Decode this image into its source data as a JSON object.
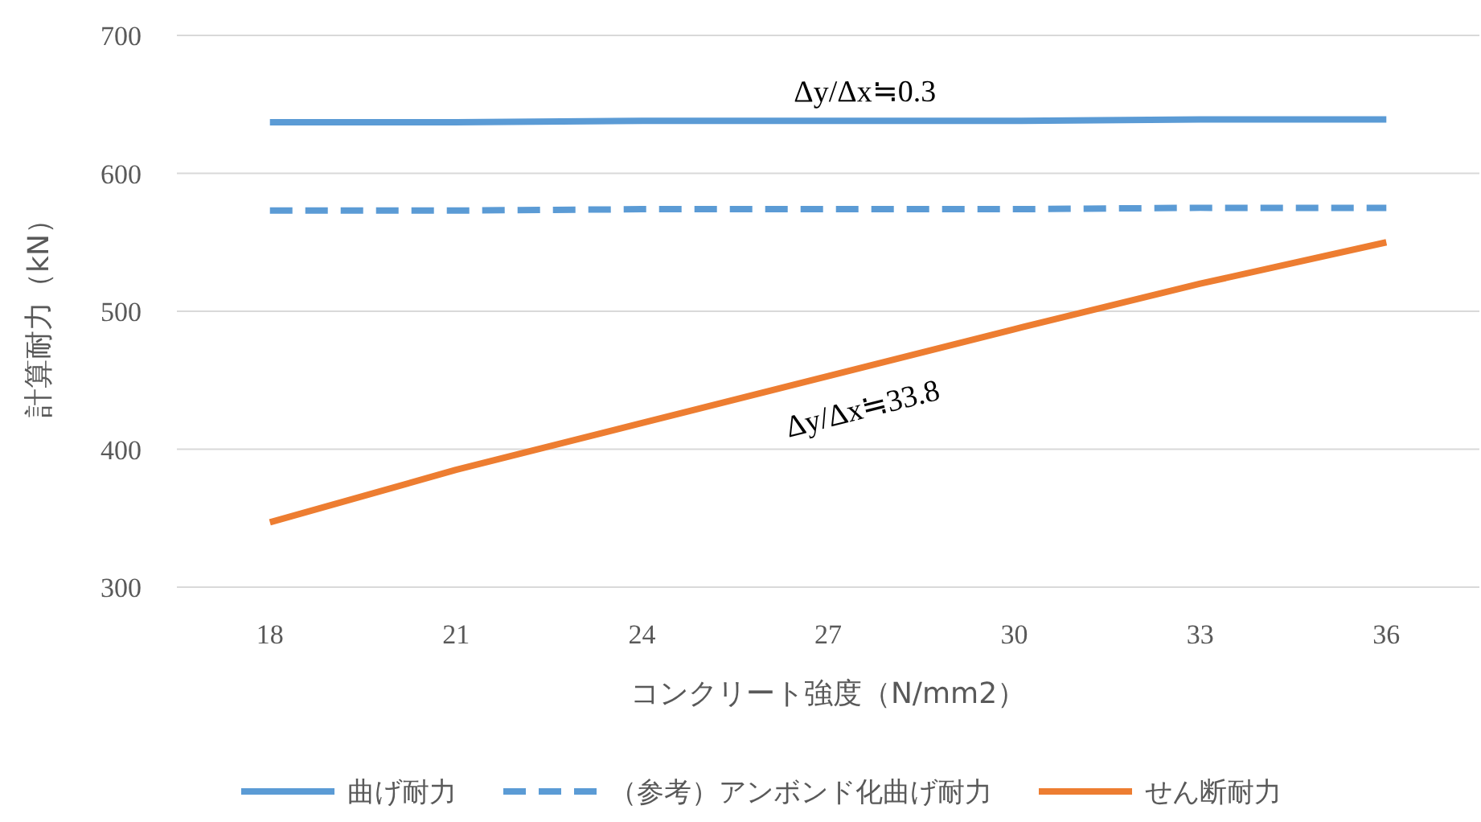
{
  "chart_data": {
    "type": "line",
    "xlabel": "コンクリート強度（N/mm2）",
    "ylabel": "計算耐力（kN）",
    "categories": [
      "18",
      "21",
      "24",
      "27",
      "30",
      "33",
      "36"
    ],
    "series": [
      {
        "name": "曲げ耐力",
        "color": "#5b9bd5",
        "line_style": "solid",
        "values": [
          637,
          637,
          638,
          638,
          638,
          639,
          639
        ]
      },
      {
        "name": "（参考）アンボンド化曲げ耐力",
        "color": "#5b9bd5",
        "line_style": "dashed",
        "values": [
          573,
          573,
          574,
          574,
          574,
          575,
          575
        ]
      },
      {
        "name": "せん断耐力",
        "color": "#ed7d31",
        "line_style": "solid",
        "values": [
          347,
          385,
          419,
          453,
          487,
          520,
          550
        ]
      }
    ],
    "ylim": [
      300,
      700
    ],
    "yticks": [
      300,
      400,
      500,
      600,
      700
    ],
    "grid": "y",
    "legend": "bottom",
    "marker": "none",
    "annotations": [
      "Δy/Δx≒0.3",
      "Δy/Δx≒33.8"
    ]
  }
}
